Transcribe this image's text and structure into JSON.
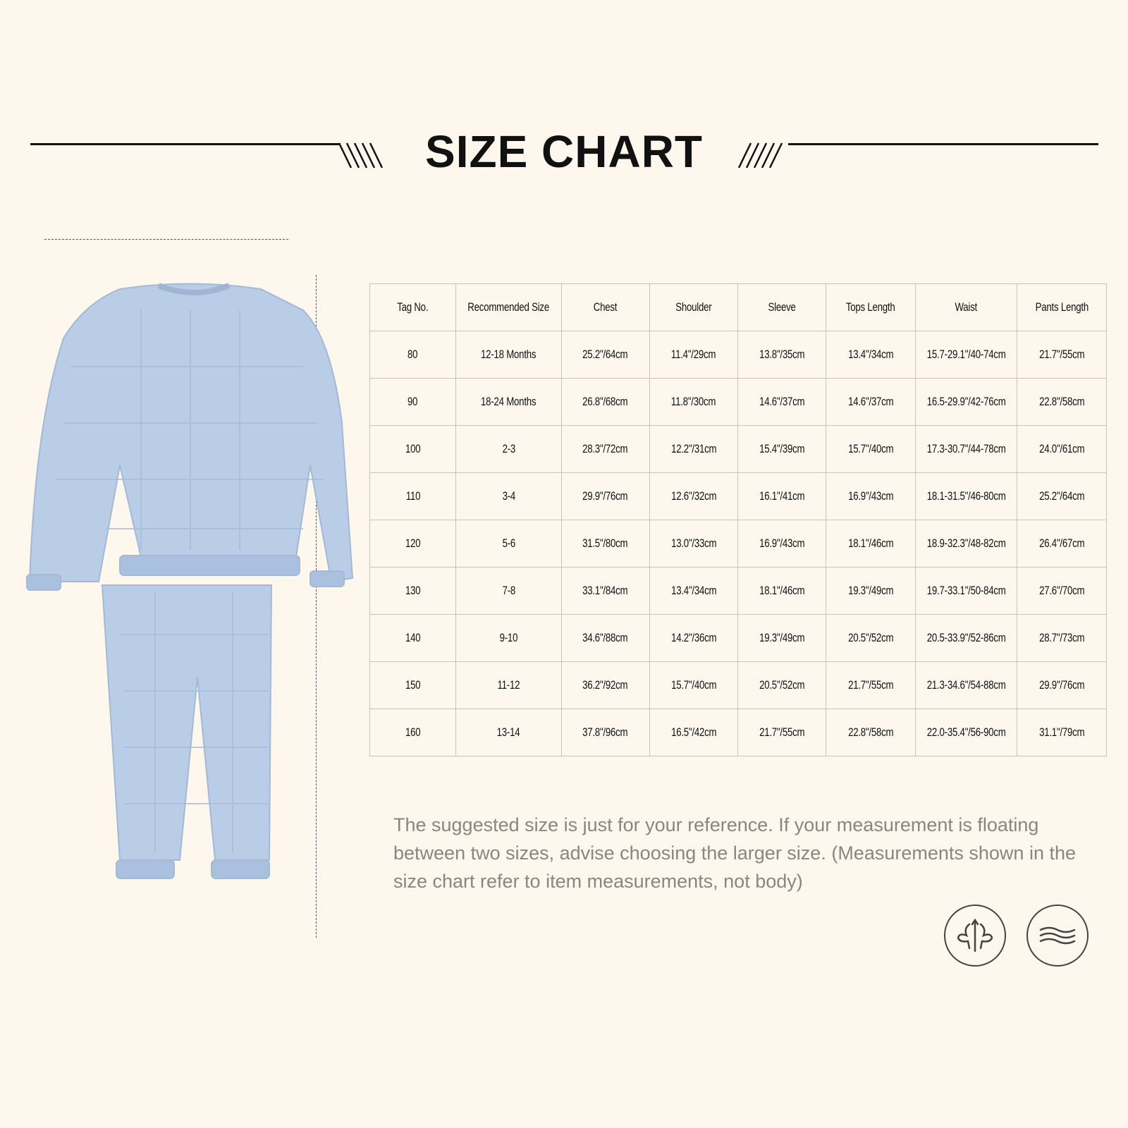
{
  "title": "SIZE CHART",
  "table": {
    "headers": [
      "Tag No.",
      "Recommended Size",
      "Chest",
      "Shoulder",
      "Sleeve",
      "Tops Length",
      "Waist",
      "Pants Length"
    ],
    "rows": [
      [
        "80",
        "12-18 Months",
        "25.2\"/64cm",
        "11.4\"/29cm",
        "13.8\"/35cm",
        "13.4\"/34cm",
        "15.7-29.1\"/40-74cm",
        "21.7\"/55cm"
      ],
      [
        "90",
        "18-24 Months",
        "26.8\"/68cm",
        "11.8\"/30cm",
        "14.6\"/37cm",
        "14.6\"/37cm",
        "16.5-29.9\"/42-76cm",
        "22.8\"/58cm"
      ],
      [
        "100",
        "2-3",
        "28.3\"/72cm",
        "12.2\"/31cm",
        "15.4\"/39cm",
        "15.7\"/40cm",
        "17.3-30.7\"/44-78cm",
        "24.0\"/61cm"
      ],
      [
        "110",
        "3-4",
        "29.9\"/76cm",
        "12.6\"/32cm",
        "16.1\"/41cm",
        "16.9\"/43cm",
        "18.1-31.5\"/46-80cm",
        "25.2\"/64cm"
      ],
      [
        "120",
        "5-6",
        "31.5\"/80cm",
        "13.0\"/33cm",
        "16.9\"/43cm",
        "18.1\"/46cm",
        "18.9-32.3\"/48-82cm",
        "26.4\"/67cm"
      ],
      [
        "130",
        "7-8",
        "33.1\"/84cm",
        "13.4\"/34cm",
        "18.1\"/46cm",
        "19.3\"/49cm",
        "19.7-33.1\"/50-84cm",
        "27.6\"/70cm"
      ],
      [
        "140",
        "9-10",
        "34.6\"/88cm",
        "14.2\"/36cm",
        "19.3\"/49cm",
        "20.5\"/52cm",
        "20.5-33.9\"/52-86cm",
        "28.7\"/73cm"
      ],
      [
        "150",
        "11-12",
        "36.2\"/92cm",
        "15.7\"/40cm",
        "20.5\"/52cm",
        "21.7\"/55cm",
        "21.3-34.6\"/54-88cm",
        "29.9\"/76cm"
      ],
      [
        "160",
        "13-14",
        "37.8\"/96cm",
        "16.5\"/42cm",
        "21.7\"/55cm",
        "22.8\"/58cm",
        "22.0-35.4\"/56-90cm",
        "31.1\"/79cm"
      ]
    ]
  },
  "note": "The suggested size is just for your reference. If your measurement is floating between two sizes, advise choosing the larger size. (Measurements shown in the size chart refer to item measurements, not body)",
  "icons": [
    "fleece-warmth-icon",
    "soft-wave-icon"
  ],
  "colors": {
    "background": "#fdf7ee",
    "garment": "#b9cde6",
    "note_text": "#8a8580"
  }
}
